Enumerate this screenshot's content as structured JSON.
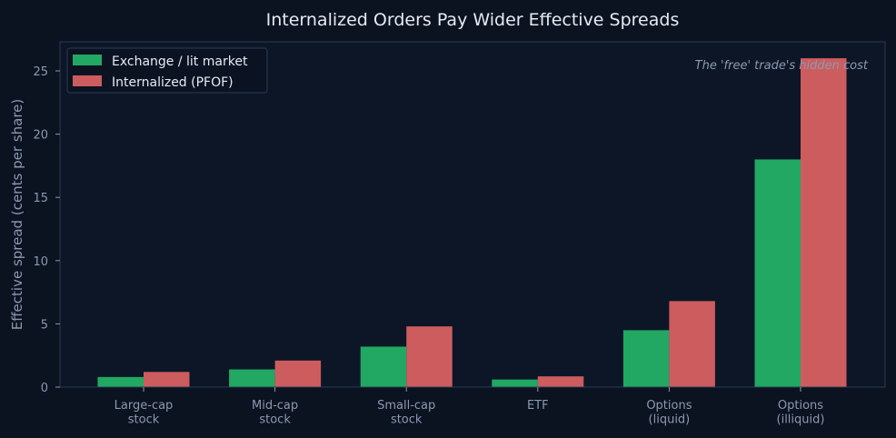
{
  "chart_data": {
    "type": "bar",
    "title": "Internalized Orders Pay Wider Effective Spreads",
    "xlabel": "",
    "ylabel": "Effective spread (cents per share)",
    "categories": [
      [
        "Large-cap",
        "stock"
      ],
      [
        "Mid-cap",
        "stock"
      ],
      [
        "Small-cap",
        "stock"
      ],
      [
        "ETF"
      ],
      [
        "Options",
        "(liquid)"
      ],
      [
        "Options",
        "(illiquid)"
      ]
    ],
    "series": [
      {
        "name": "Exchange / lit market",
        "color": "#22a862",
        "values": [
          0.8,
          1.4,
          3.2,
          0.6,
          4.5,
          18.0
        ]
      },
      {
        "name": "Internalized (PFOF)",
        "color": "#cd5c5f",
        "values": [
          1.2,
          2.1,
          4.8,
          0.85,
          6.8,
          26.0
        ]
      }
    ],
    "ylim": [
      0,
      27.3
    ],
    "yticks": [
      0,
      5,
      10,
      15,
      20,
      25
    ],
    "grid": false,
    "legend_position": "top-left",
    "annotation": "The 'free' trade's hidden cost",
    "colors": {
      "background": "#0b1220",
      "plot_background": "#0c1627",
      "axis": "#2a3b55",
      "tick_text": "#8a9ab0",
      "title_text": "#e6ebf2",
      "legend_text": "#e6ebf2",
      "annotation_text": "#8a9ab0"
    }
  }
}
